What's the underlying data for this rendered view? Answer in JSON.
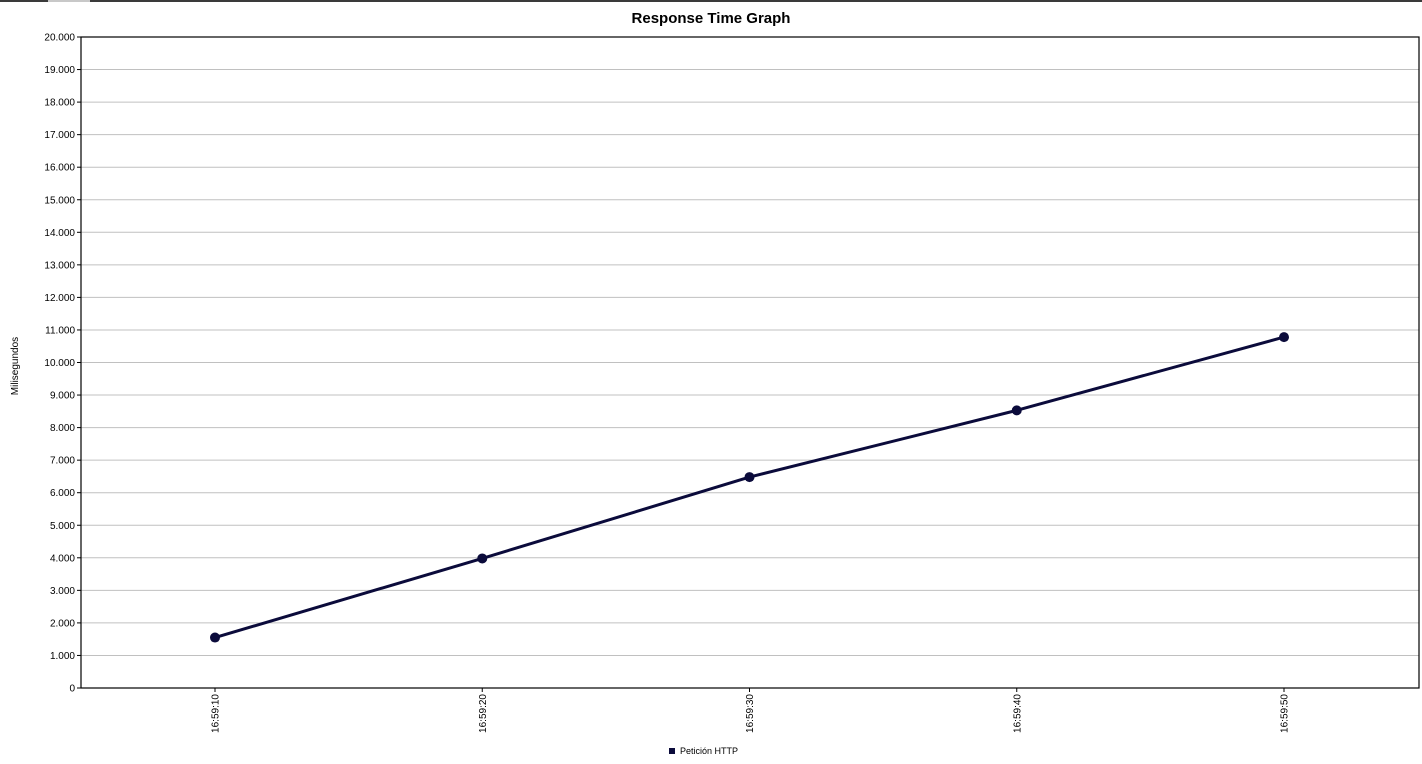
{
  "chart_data": {
    "type": "line",
    "title": "Response Time Graph",
    "xlabel": "",
    "ylabel": "Milisegundos",
    "categories": [
      "16:59:10",
      "16:59:20",
      "16:59:30",
      "16:59:40",
      "16:59:50"
    ],
    "ylim": [
      0,
      20000
    ],
    "y_ticks": [
      "0",
      "1.000",
      "2.000",
      "3.000",
      "4.000",
      "5.000",
      "6.000",
      "7.000",
      "8.000",
      "9.000",
      "10.000",
      "11.000",
      "12.000",
      "13.000",
      "14.000",
      "15.000",
      "16.000",
      "17.000",
      "18.000",
      "19.000",
      "20.000"
    ],
    "y_tick_values": [
      0,
      1000,
      2000,
      3000,
      4000,
      5000,
      6000,
      7000,
      8000,
      9000,
      10000,
      11000,
      12000,
      13000,
      14000,
      15000,
      16000,
      17000,
      18000,
      19000,
      20000
    ],
    "grid": true,
    "legend_position": "bottom",
    "series": [
      {
        "name": "Petición HTTP",
        "color": "#0b0b3b",
        "values": [
          1550,
          3980,
          6480,
          8530,
          10780
        ]
      }
    ]
  }
}
